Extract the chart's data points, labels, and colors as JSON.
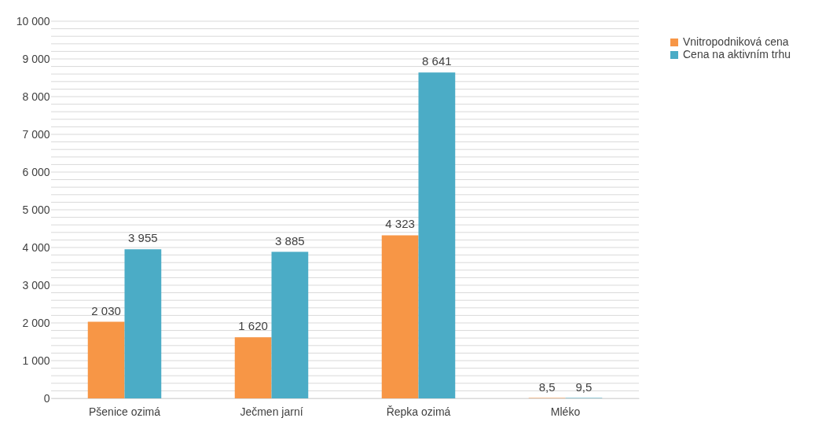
{
  "chart_data": {
    "type": "bar",
    "categories": [
      "Pšenice ozimá",
      "Ječmen jarní",
      "Řepka ozimá",
      "Mléko"
    ],
    "series": [
      {
        "name": "Vnitropodniková cena",
        "color": "#f79646",
        "values": [
          2030,
          1620,
          4323,
          8.5
        ],
        "value_labels": [
          "2 030",
          "1 620",
          "4 323",
          "8,5"
        ]
      },
      {
        "name": "Cena na aktivním trhu",
        "color": "#4bacc6",
        "values": [
          3955,
          3885,
          8641,
          9.5
        ],
        "value_labels": [
          "3 955",
          "3 885",
          "8 641",
          "9,5"
        ]
      }
    ],
    "ylim": [
      0,
      10000
    ],
    "yticks": [
      {
        "value": 0,
        "label": "0"
      },
      {
        "value": 200,
        "label": null
      },
      {
        "value": 400,
        "label": null
      },
      {
        "value": 600,
        "label": null
      },
      {
        "value": 800,
        "label": null
      },
      {
        "value": 1000,
        "label": "1 000"
      },
      {
        "value": 1200,
        "label": null
      },
      {
        "value": 1400,
        "label": null
      },
      {
        "value": 1600,
        "label": null
      },
      {
        "value": 1800,
        "label": null
      },
      {
        "value": 2000,
        "label": "2 000"
      },
      {
        "value": 2200,
        "label": null
      },
      {
        "value": 2400,
        "label": null
      },
      {
        "value": 2600,
        "label": null
      },
      {
        "value": 2800,
        "label": null
      },
      {
        "value": 3000,
        "label": "3 000"
      },
      {
        "value": 3200,
        "label": null
      },
      {
        "value": 3400,
        "label": null
      },
      {
        "value": 3600,
        "label": null
      },
      {
        "value": 3800,
        "label": null
      },
      {
        "value": 4000,
        "label": "4 000"
      },
      {
        "value": 4200,
        "label": null
      },
      {
        "value": 4400,
        "label": null
      },
      {
        "value": 4600,
        "label": null
      },
      {
        "value": 4800,
        "label": null
      },
      {
        "value": 5000,
        "label": "5 000"
      },
      {
        "value": 5200,
        "label": null
      },
      {
        "value": 5400,
        "label": null
      },
      {
        "value": 5600,
        "label": null
      },
      {
        "value": 5800,
        "label": null
      },
      {
        "value": 6000,
        "label": "6 000"
      },
      {
        "value": 6200,
        "label": null
      },
      {
        "value": 6400,
        "label": null
      },
      {
        "value": 6600,
        "label": null
      },
      {
        "value": 6800,
        "label": null
      },
      {
        "value": 7000,
        "label": "7 000"
      },
      {
        "value": 7200,
        "label": null
      },
      {
        "value": 7400,
        "label": null
      },
      {
        "value": 7600,
        "label": null
      },
      {
        "value": 7800,
        "label": null
      },
      {
        "value": 8000,
        "label": "8 000"
      },
      {
        "value": 8200,
        "label": null
      },
      {
        "value": 8400,
        "label": null
      },
      {
        "value": 8600,
        "label": null
      },
      {
        "value": 8800,
        "label": null
      },
      {
        "value": 9000,
        "label": "9 000"
      },
      {
        "value": 9200,
        "label": null
      },
      {
        "value": 9400,
        "label": null
      },
      {
        "value": 9600,
        "label": null
      },
      {
        "value": 9800,
        "label": null
      },
      {
        "value": 10000,
        "label": "10 000"
      }
    ],
    "grid": "y",
    "legend": "right"
  }
}
